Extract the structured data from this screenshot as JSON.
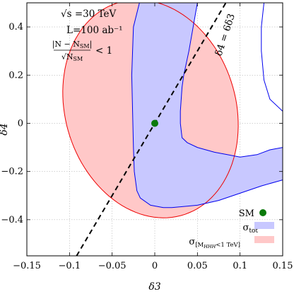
{
  "chart_data": {
    "type": "area",
    "xlabel": "δ3",
    "ylabel": "δ4",
    "xlim": [
      -0.15,
      0.15
    ],
    "ylim": [
      -0.55,
      0.5
    ],
    "grid": true,
    "legend_position": "bottom-right",
    "x_ticks": [
      "−0.15",
      "−0.1",
      "−0.05",
      "0",
      "0.05",
      "0.1",
      "0.15"
    ],
    "y_ticks": [
      "0.4",
      "0.2",
      "0",
      "−0.2",
      "−0.4"
    ],
    "x_tick_values": [
      -0.15,
      -0.1,
      -0.05,
      0,
      0.05,
      0.1,
      0.15
    ],
    "y_tick_values": [
      0.4,
      0.2,
      0,
      -0.2,
      -0.4
    ],
    "annotations": {
      "energy": "√s =30 TeV",
      "luminosity": "L=100 ab⁻¹",
      "criterion": "|N−N_SM| / √N_SM < 1",
      "line_label": "δ4 = 6δ3"
    },
    "sm_point": {
      "label": "SM",
      "x": 0.0,
      "y": 0.0,
      "color": "#0a7a0a"
    },
    "series": [
      {
        "name": "σ_tot",
        "color": "#c8c8ff",
        "edge_color": "#0000ee",
        "left_lobe": [
          [
            -0.018,
            0.5
          ],
          [
            -0.025,
            0.4
          ],
          [
            -0.027,
            0.2
          ],
          [
            -0.026,
            0.05
          ],
          [
            -0.025,
            -0.1
          ],
          [
            -0.024,
            -0.2
          ],
          [
            -0.021,
            -0.28
          ],
          [
            -0.017,
            -0.31
          ],
          [
            -0.005,
            -0.34
          ],
          [
            0.01,
            -0.35
          ],
          [
            0.02,
            -0.35
          ],
          [
            0.05,
            -0.34
          ],
          [
            0.075,
            -0.32
          ],
          [
            0.1,
            -0.29
          ],
          [
            0.125,
            -0.26
          ],
          [
            0.15,
            -0.235
          ],
          [
            0.15,
            -0.1
          ],
          [
            0.135,
            -0.11
          ],
          [
            0.12,
            -0.13
          ],
          [
            0.1,
            -0.14
          ],
          [
            0.085,
            -0.13
          ],
          [
            0.07,
            -0.12
          ],
          [
            0.05,
            -0.1
          ],
          [
            0.038,
            -0.08
          ],
          [
            0.032,
            -0.06
          ],
          [
            0.03,
            0
          ],
          [
            0.03,
            0.05
          ],
          [
            0.032,
            0.15
          ],
          [
            0.034,
            0.2
          ],
          [
            0.04,
            0.3
          ],
          [
            0.045,
            0.4
          ],
          [
            0.05,
            0.5
          ]
        ],
        "right_lobe": [
          [
            0.128,
            0.5
          ],
          [
            0.125,
            0.4
          ],
          [
            0.125,
            0.3
          ],
          [
            0.128,
            0.18
          ],
          [
            0.135,
            0.1
          ],
          [
            0.15,
            0.05
          ]
        ]
      },
      {
        "name": "σ_[M_HHH<1 TeV]",
        "color": "#ffc8c8",
        "edge_color": "#ee0000",
        "ellipse": {
          "cx": -0.005,
          "cy": 0.06,
          "a": 0.165,
          "b": 0.195,
          "angle_deg": 58
        }
      }
    ],
    "reference_line": {
      "slope": 6,
      "intercept": 0,
      "style": "dashed",
      "color": "#000000"
    }
  },
  "legend": {
    "sm_label": "SM",
    "tot_label_main": "σ",
    "tot_label_sub": "tot",
    "mhhh_label_main": "σ",
    "mhhh_label_sub": "[M",
    "mhhh_label_sub2": "HHH",
    "mhhh_label_tail": "<1 TeV]"
  }
}
